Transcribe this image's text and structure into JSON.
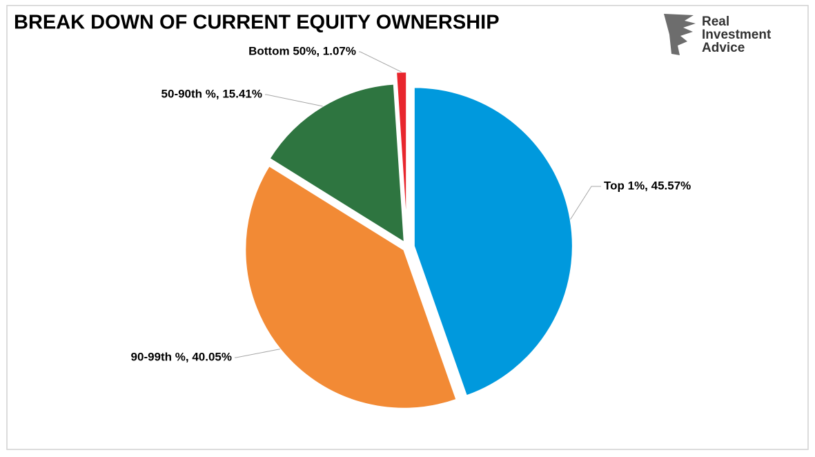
{
  "chart_data": {
    "type": "pie",
    "title": "BREAK DOWN OF CURRENT EQUITY OWNERSHIP",
    "values": [
      45.57,
      40.05,
      15.41,
      1.07
    ],
    "value_labels": [
      "Top 1%, 45.57%",
      "90-99th %, 40.05%",
      "50-90th %, 15.41%",
      "Bottom 50%, 1.07%"
    ],
    "colors": [
      "#0099dd",
      "#f28a35",
      "#2e7540",
      "#e8262d"
    ]
  },
  "logo": {
    "lines": [
      "Real",
      "Investment",
      "Advice"
    ]
  }
}
